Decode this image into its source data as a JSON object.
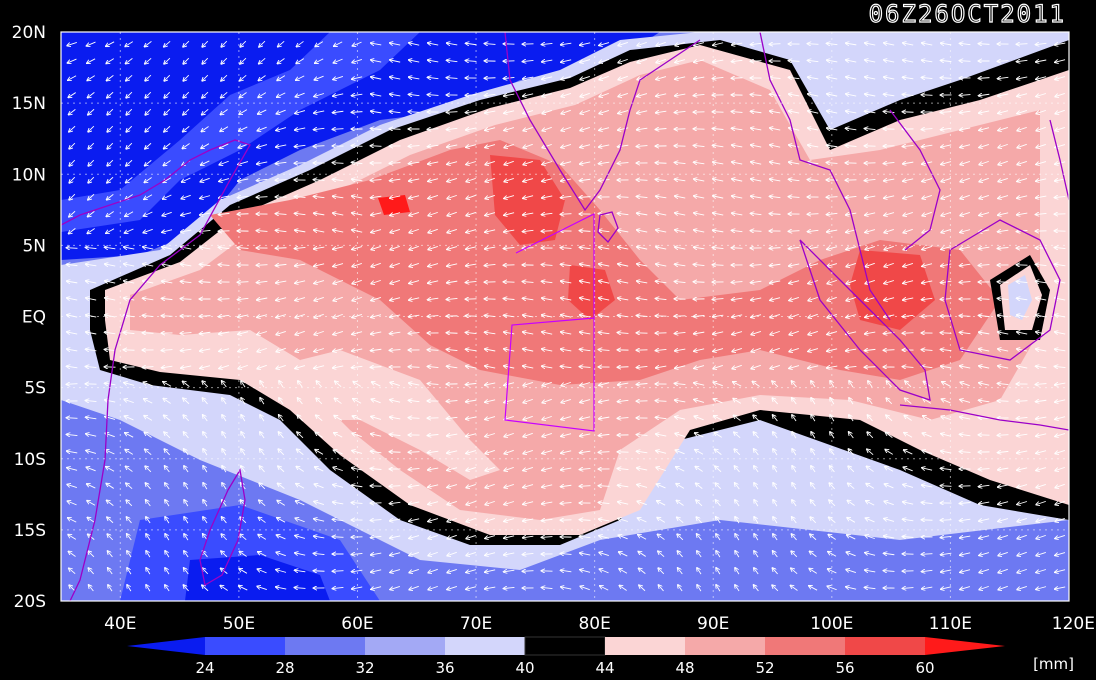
{
  "title": "06Z26OCT2011",
  "units": "[mm]",
  "map": {
    "lon_range": [
      35,
      120
    ],
    "lat_range": [
      -20,
      20
    ],
    "x_ticks": [
      "40E",
      "50E",
      "60E",
      "70E",
      "80E",
      "90E",
      "100E",
      "110E",
      "120E"
    ],
    "y_ticks": [
      "20N",
      "15N",
      "10N",
      "5N",
      "EQ",
      "5S",
      "10S",
      "15S",
      "20S"
    ],
    "grid": true,
    "vector_field": "wind arrows"
  },
  "colorbar": {
    "levels": [
      "24",
      "28",
      "32",
      "36",
      "40",
      "44",
      "48",
      "52",
      "56",
      "60"
    ],
    "colors": [
      "#0a1cf0",
      "#3a4cff",
      "#6d79f2",
      "#a3a9f5",
      "#d3d6fb",
      "#000000",
      "#fbd5d5",
      "#f5a9a9",
      "#f07878",
      "#f04848",
      "#ff1a1a"
    ]
  },
  "colors": {
    "background": "#000000",
    "coast": "#9c00c8",
    "box": "#c800ff",
    "arrows": "#ffffff"
  }
}
